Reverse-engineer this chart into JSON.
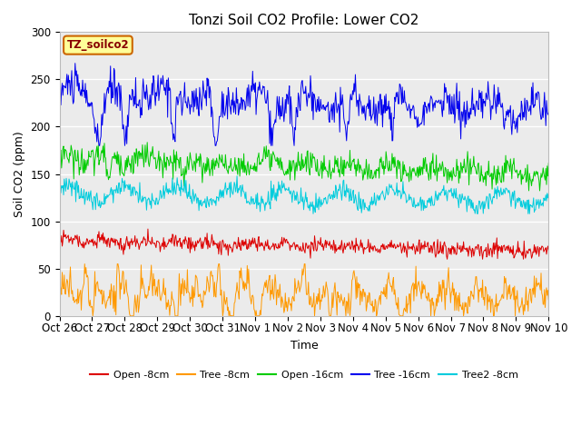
{
  "title": "Tonzi Soil CO2 Profile: Lower CO2",
  "ylabel": "Soil CO2 (ppm)",
  "xlabel": "Time",
  "ylim": [
    0,
    300
  ],
  "xlim": [
    0,
    15
  ],
  "legend_label": "TZ_soilco2",
  "xtick_labels": [
    "Oct 26",
    "Oct 27",
    "Oct 28",
    "Oct 29",
    "Oct 30",
    "Oct 31",
    "Nov 1",
    "Nov 2",
    "Nov 3",
    "Nov 4",
    "Nov 5",
    "Nov 6",
    "Nov 7",
    "Nov 8",
    "Nov 9",
    "Nov 10"
  ],
  "ytick_vals": [
    0,
    50,
    100,
    150,
    200,
    250,
    300
  ],
  "series": {
    "open_8cm": {
      "label": "Open -8cm",
      "color": "#dd0000"
    },
    "tree_8cm": {
      "label": "Tree -8cm",
      "color": "#ff9900"
    },
    "open_16cm": {
      "label": "Open -16cm",
      "color": "#00cc00"
    },
    "tree_16cm": {
      "label": "Tree -16cm",
      "color": "#0000ee"
    },
    "tree2_8cm": {
      "label": "Tree2 -8cm",
      "color": "#00ccdd"
    }
  },
  "bg_color": "#ebebeb",
  "grid_color": "#ffffff",
  "title_fontsize": 11,
  "axis_fontsize": 9,
  "tick_fontsize": 8.5,
  "linewidth": 0.7,
  "n_points": 720
}
